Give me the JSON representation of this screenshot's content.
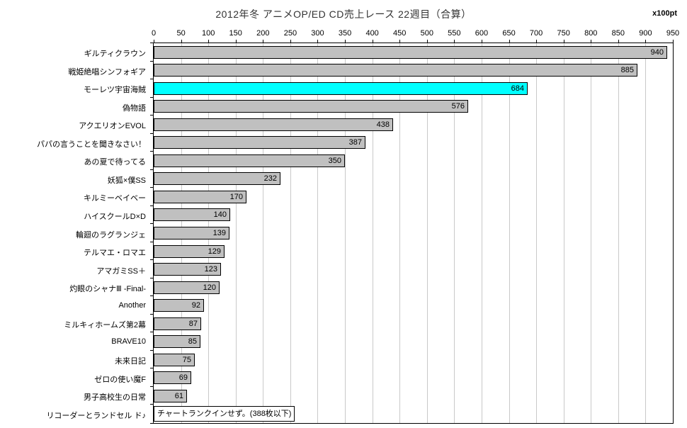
{
  "title": "2012年冬 アニメOP/ED CD売上レース 22週目（合算）",
  "unit_label": "x100pt",
  "colors": {
    "bar_fill": "#c0c0c0",
    "bar_highlight_fill": "#00ffff",
    "bar_border": "#000000",
    "gridline": "#c9c9c9",
    "plot_border": "#000000",
    "background": "#ffffff",
    "title_text": "#333333",
    "label_text": "#000000"
  },
  "chart_data": {
    "type": "bar",
    "orientation": "horizontal",
    "title": "2012年冬 アニメOP/ED CD売上レース 22週目（合算）",
    "unit": "x100pt",
    "xlabel": "",
    "ylabel": "",
    "xlim": [
      0,
      950
    ],
    "xticks": [
      0,
      50,
      100,
      150,
      200,
      250,
      300,
      350,
      400,
      450,
      500,
      550,
      600,
      650,
      700,
      750,
      800,
      850,
      900,
      950
    ],
    "grid": true,
    "legend": false,
    "value_labels": "inside-end",
    "categories": [
      "ギルティクラウン",
      "戦姫絶唱シンフォギア",
      "モーレツ宇宙海賊",
      "偽物語",
      "アクエリオンEVOL",
      "パパの言うことを聞きなさい！",
      "あの夏で待ってる",
      "妖狐×僕SS",
      "キルミーベイベー",
      "ハイスクールD×D",
      "輪廻のラグランジェ",
      "テルマエ・ロマエ",
      "アマガミSS＋",
      "灼眼のシャナⅢ -Final-",
      "Another",
      "ミルキィホームズ第2幕",
      "BRAVE10",
      "未来日記",
      "ゼロの使い魔F",
      "男子高校生の日常",
      "リコーダーとランドセル ド♪"
    ],
    "values": [
      940,
      885,
      684,
      576,
      438,
      387,
      350,
      232,
      170,
      140,
      139,
      129,
      123,
      120,
      92,
      87,
      85,
      75,
      69,
      61,
      null
    ],
    "highlight_index": 2,
    "annotation": {
      "row_index": 20,
      "text": "チャートランクインせず。(388枚以下)"
    }
  }
}
